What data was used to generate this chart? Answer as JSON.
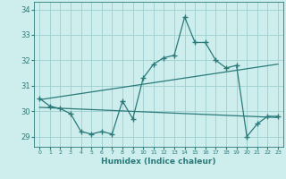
{
  "title": "",
  "xlabel": "Humidex (Indice chaleur)",
  "x": [
    0,
    1,
    2,
    3,
    4,
    5,
    6,
    7,
    8,
    9,
    10,
    11,
    12,
    13,
    14,
    15,
    16,
    17,
    18,
    19,
    20,
    21,
    22,
    23
  ],
  "y_data": [
    30.5,
    30.2,
    30.1,
    29.9,
    29.2,
    29.1,
    29.2,
    29.1,
    30.4,
    29.7,
    31.3,
    31.85,
    32.1,
    32.2,
    33.7,
    32.7,
    32.7,
    32.0,
    31.7,
    31.8,
    29.0,
    29.5,
    29.8,
    29.8
  ],
  "line_color": "#2a7a7a",
  "background_color": "#cdeeed",
  "grid_color": "#9ecece",
  "tick_color": "#2a7a7a",
  "ylim": [
    28.6,
    34.3
  ],
  "xlim": [
    -0.5,
    23.5
  ],
  "yticks": [
    29,
    30,
    31,
    32,
    33,
    34
  ],
  "xticks": [
    0,
    1,
    2,
    3,
    4,
    5,
    6,
    7,
    8,
    9,
    10,
    11,
    12,
    13,
    14,
    15,
    16,
    17,
    18,
    19,
    20,
    21,
    22,
    23
  ],
  "trend1_x": [
    0,
    23
  ],
  "trend1_y": [
    30.45,
    31.85
  ],
  "trend2_x": [
    0,
    23
  ],
  "trend2_y": [
    30.15,
    29.75
  ],
  "marker": "+"
}
